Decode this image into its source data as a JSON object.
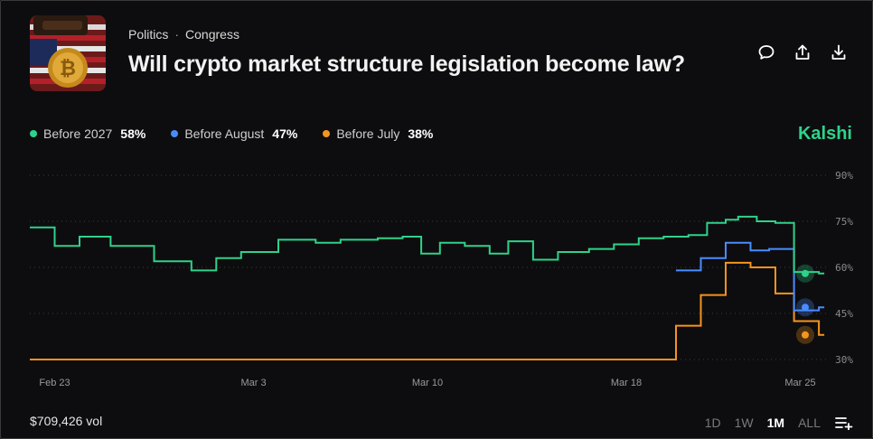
{
  "header": {
    "category": "Politics",
    "subcategory": "Congress",
    "title": "Will crypto market structure legislation become law?"
  },
  "actions": [
    "comment-icon",
    "share-icon",
    "download-icon"
  ],
  "brand": "Kalshi",
  "legend": [
    {
      "name": "Before 2027",
      "value": "58%",
      "color": "#2fd28a"
    },
    {
      "name": "Before August",
      "value": "47%",
      "color": "#4a8cff"
    },
    {
      "name": "Before July",
      "value": "38%",
      "color": "#f5941e"
    }
  ],
  "footer": {
    "volume": "$709,426 vol",
    "ranges": [
      "1D",
      "1W",
      "1M",
      "ALL"
    ],
    "active_range": "1M"
  },
  "chart_data": {
    "type": "line",
    "step": true,
    "x_range": [
      "2025-02-22",
      "2025-03-26"
    ],
    "ylim": [
      30,
      90
    ],
    "y_ticks": [
      30,
      45,
      60,
      75,
      90
    ],
    "y_tick_labels": [
      "30%",
      "45%",
      "60%",
      "75%",
      "90%"
    ],
    "x_ticks": [
      {
        "date": "2025-02-23",
        "label": "Feb 23"
      },
      {
        "date": "2025-03-03",
        "label": "Mar 3"
      },
      {
        "date": "2025-03-10",
        "label": "Mar 10"
      },
      {
        "date": "2025-03-18",
        "label": "Mar 18"
      },
      {
        "date": "2025-03-25",
        "label": "Mar 25"
      }
    ],
    "grid": "horizontal-dotted",
    "legend_position": "top-left",
    "series": [
      {
        "name": "Before 2027",
        "color": "#2fd28a",
        "points": [
          [
            "2025-02-22 00:00",
            73
          ],
          [
            "2025-02-23 00:00",
            67
          ],
          [
            "2025-02-24 00:00",
            70
          ],
          [
            "2025-02-25 06:00",
            67
          ],
          [
            "2025-02-27 00:00",
            62
          ],
          [
            "2025-02-28 12:00",
            59
          ],
          [
            "2025-03-01 12:00",
            63
          ],
          [
            "2025-03-02 12:00",
            65
          ],
          [
            "2025-03-04 00:00",
            69
          ],
          [
            "2025-03-05 12:00",
            68
          ],
          [
            "2025-03-06 12:00",
            69
          ],
          [
            "2025-03-08 00:00",
            69.5
          ],
          [
            "2025-03-09 00:00",
            70
          ],
          [
            "2025-03-09 18:00",
            64.5
          ],
          [
            "2025-03-10 12:00",
            68
          ],
          [
            "2025-03-11 12:00",
            67
          ],
          [
            "2025-03-12 12:00",
            64.5
          ],
          [
            "2025-03-13 06:00",
            68.5
          ],
          [
            "2025-03-14 06:00",
            62.5
          ],
          [
            "2025-03-15 06:00",
            65
          ],
          [
            "2025-03-16 12:00",
            66
          ],
          [
            "2025-03-17 12:00",
            67.5
          ],
          [
            "2025-03-18 12:00",
            69.5
          ],
          [
            "2025-03-19 12:00",
            70
          ],
          [
            "2025-03-20 12:00",
            70.5
          ],
          [
            "2025-03-21 06:00",
            74.5
          ],
          [
            "2025-03-22 00:00",
            75.5
          ],
          [
            "2025-03-22 12:00",
            76.5
          ],
          [
            "2025-03-23 06:00",
            75
          ],
          [
            "2025-03-24 00:00",
            74.5
          ],
          [
            "2025-03-24 18:00",
            58.5
          ],
          [
            "2025-03-25 18:00",
            58
          ]
        ]
      },
      {
        "name": "Before August",
        "color": "#4a8cff",
        "points": [
          [
            "2025-03-20 00:00",
            59
          ],
          [
            "2025-03-21 00:00",
            63
          ],
          [
            "2025-03-22 00:00",
            68
          ],
          [
            "2025-03-23 00:00",
            65.5
          ],
          [
            "2025-03-23 18:00",
            66
          ],
          [
            "2025-03-24 18:00",
            46
          ],
          [
            "2025-03-25 18:00",
            47
          ]
        ]
      },
      {
        "name": "Before July",
        "color": "#f5941e",
        "points": [
          [
            "2025-02-22 00:00",
            30
          ],
          [
            "2025-03-20 00:00",
            41
          ],
          [
            "2025-03-21 00:00",
            51
          ],
          [
            "2025-03-22 00:00",
            61.5
          ],
          [
            "2025-03-23 00:00",
            60
          ],
          [
            "2025-03-24 00:00",
            51.5
          ],
          [
            "2025-03-24 18:00",
            42.5
          ],
          [
            "2025-03-25 18:00",
            38
          ]
        ]
      }
    ]
  }
}
